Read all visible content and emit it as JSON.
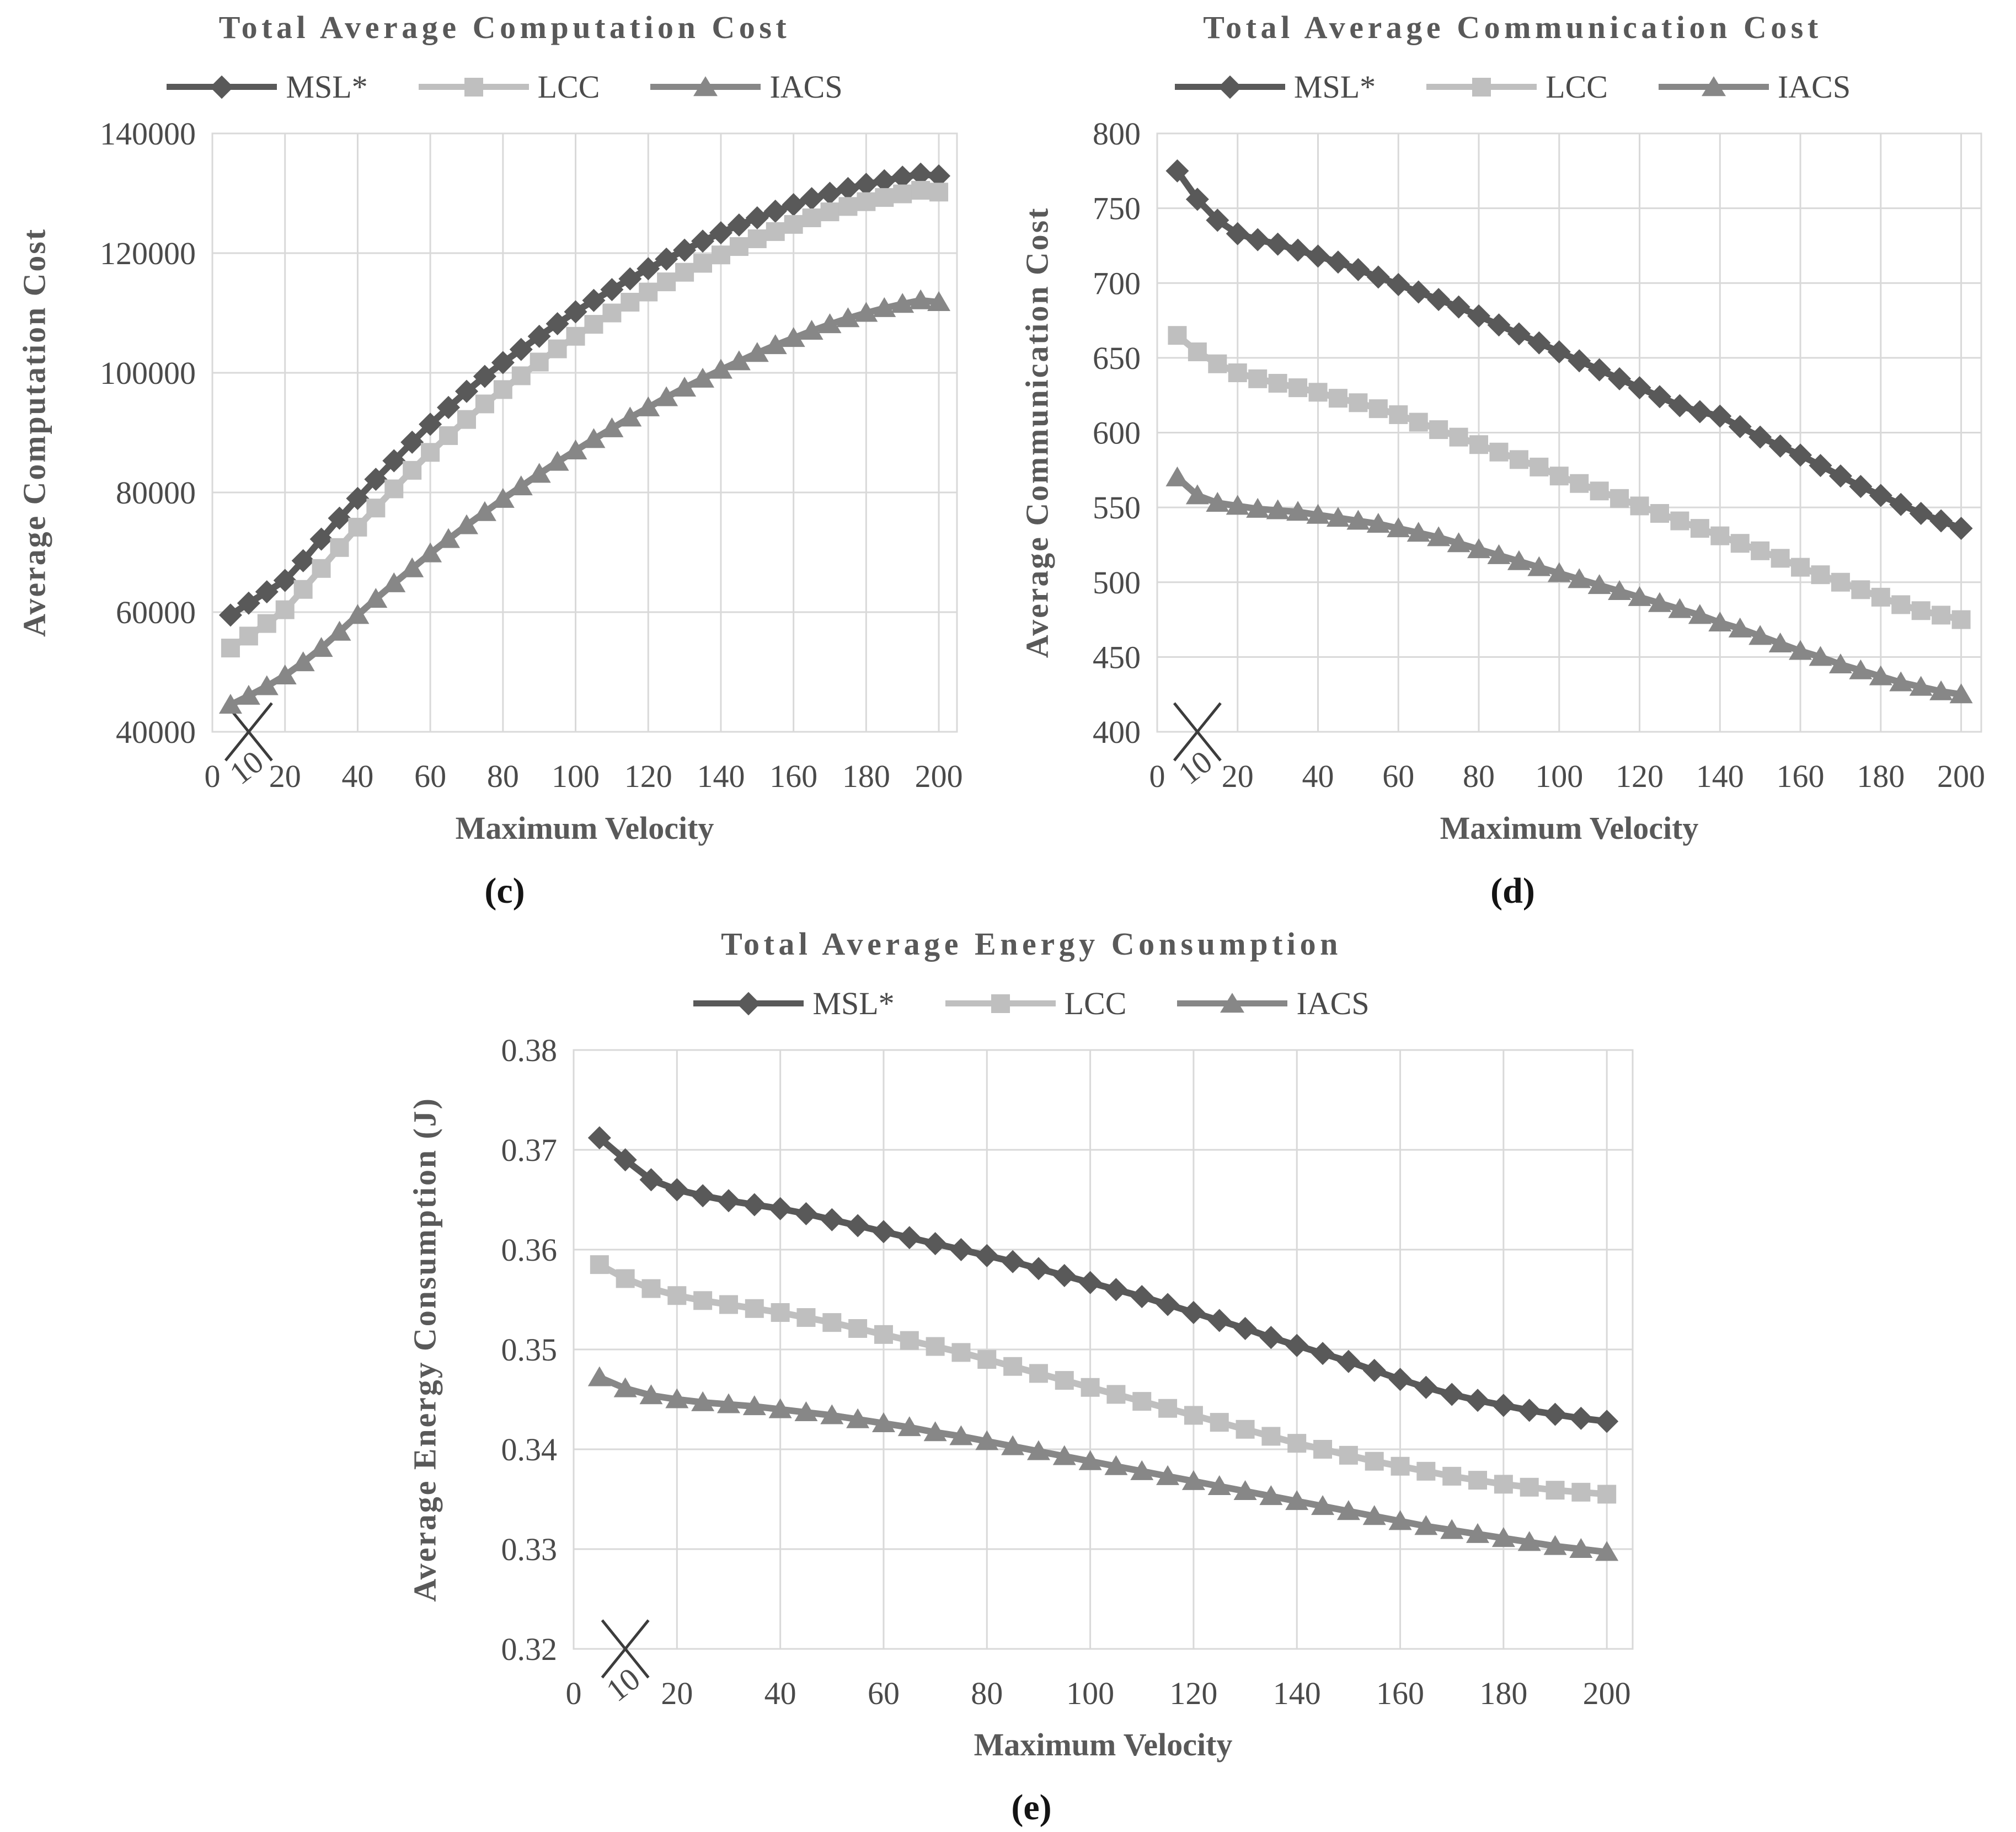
{
  "colors": {
    "background": "#ffffff",
    "grid": "#d9d9d9",
    "tick_text": "#4a4a4a",
    "title_text": "#595959",
    "sublabel_text": "#141414",
    "annotation": "#3c3c3c",
    "series_msl": "#595959",
    "series_lcc": "#bfbfbf",
    "series_iacs": "#878787"
  },
  "chart_data": [
    {
      "id": "c",
      "type": "line",
      "title": "Total Average Computation Cost",
      "sublabel": "(c)",
      "xlabel": "Maximum Velocity",
      "ylabel": "Average Computation Cost",
      "legend_position": "top",
      "grid": true,
      "xlim": [
        0,
        205
      ],
      "ylim": [
        40000,
        140000
      ],
      "xticks": [
        0,
        20,
        40,
        60,
        80,
        100,
        120,
        140,
        160,
        180,
        200
      ],
      "yticks": [
        40000,
        60000,
        80000,
        100000,
        120000,
        140000
      ],
      "annotation": {
        "x": 10,
        "label": "10",
        "marker": "x-cross",
        "color": "#3c3c3c"
      },
      "x": [
        5,
        10,
        15,
        20,
        25,
        30,
        35,
        40,
        45,
        50,
        55,
        60,
        65,
        70,
        75,
        80,
        85,
        90,
        95,
        100,
        105,
        110,
        115,
        120,
        125,
        130,
        135,
        140,
        145,
        150,
        155,
        160,
        165,
        170,
        175,
        180,
        185,
        190,
        195,
        200
      ],
      "series": [
        {
          "name": "MSL*",
          "marker": "diamond",
          "color": "#595959",
          "values": [
            59500,
            61500,
            63400,
            65300,
            68600,
            72200,
            75700,
            79000,
            82200,
            85300,
            88400,
            91400,
            94200,
            96900,
            99400,
            101700,
            103900,
            106100,
            108200,
            110200,
            112100,
            113900,
            115700,
            117400,
            119000,
            120500,
            122000,
            123400,
            124700,
            125900,
            127000,
            128100,
            129100,
            130000,
            130800,
            131500,
            132100,
            132700,
            133200,
            132900
          ]
        },
        {
          "name": "LCC",
          "marker": "square",
          "color": "#bfbfbf",
          "values": [
            54000,
            56000,
            58100,
            60400,
            63800,
            67300,
            70800,
            74200,
            77400,
            80600,
            83700,
            86700,
            89500,
            92200,
            94800,
            97200,
            99500,
            101800,
            104000,
            106100,
            108100,
            110000,
            111800,
            113500,
            115200,
            116800,
            118300,
            119700,
            121100,
            122400,
            123600,
            124800,
            125900,
            126900,
            127800,
            128600,
            129300,
            129900,
            130500,
            130200
          ]
        },
        {
          "name": "IACS",
          "marker": "triangle",
          "color": "#878787",
          "values": [
            44500,
            46000,
            47600,
            49400,
            51600,
            54000,
            56700,
            59500,
            62200,
            64800,
            67300,
            69800,
            72200,
            74500,
            76700,
            78900,
            81000,
            83100,
            85100,
            87000,
            88900,
            90700,
            92500,
            94200,
            95900,
            97500,
            99000,
            100500,
            101900,
            103300,
            104600,
            105800,
            107000,
            108100,
            109100,
            110000,
            110800,
            111500,
            112100,
            111800
          ]
        }
      ]
    },
    {
      "id": "d",
      "type": "line",
      "title": "Total Average Communication Cost",
      "sublabel": "(d)",
      "xlabel": "Maximum Velocity",
      "ylabel": "Average Communication Cost",
      "legend_position": "top",
      "grid": true,
      "xlim": [
        0,
        205
      ],
      "ylim": [
        400,
        800
      ],
      "xticks": [
        0,
        20,
        40,
        60,
        80,
        100,
        120,
        140,
        160,
        180,
        200
      ],
      "yticks": [
        400,
        450,
        500,
        550,
        600,
        650,
        700,
        750,
        800
      ],
      "annotation": {
        "x": 10,
        "label": "10",
        "marker": "x-cross",
        "color": "#3c3c3c"
      },
      "x": [
        5,
        10,
        15,
        20,
        25,
        30,
        35,
        40,
        45,
        50,
        55,
        60,
        65,
        70,
        75,
        80,
        85,
        90,
        95,
        100,
        105,
        110,
        115,
        120,
        125,
        130,
        135,
        140,
        145,
        150,
        155,
        160,
        165,
        170,
        175,
        180,
        185,
        190,
        195,
        200
      ],
      "series": [
        {
          "name": "MSL*",
          "marker": "diamond",
          "color": "#595959",
          "values": [
            775,
            756,
            742,
            733,
            729,
            726,
            722,
            718,
            714,
            709,
            704,
            699,
            694,
            689,
            684,
            678,
            672,
            666,
            660,
            654,
            648,
            642,
            636,
            630,
            624,
            618,
            614,
            611,
            604,
            597,
            591,
            585,
            578,
            571,
            564,
            558,
            552,
            546,
            541,
            536
          ]
        },
        {
          "name": "LCC",
          "marker": "square",
          "color": "#bfbfbf",
          "values": [
            665,
            654,
            646,
            640,
            636,
            633,
            630,
            627,
            623,
            620,
            616,
            612,
            607,
            602,
            597,
            592,
            587,
            582,
            577,
            571,
            566,
            561,
            556,
            551,
            546,
            541,
            536,
            531,
            526,
            521,
            516,
            510,
            505,
            500,
            495,
            490,
            485,
            481,
            478,
            475
          ]
        },
        {
          "name": "IACS",
          "marker": "triangle",
          "color": "#878787",
          "values": [
            570,
            558,
            553,
            551,
            549,
            548,
            547,
            545,
            543,
            541,
            539,
            536,
            533,
            530,
            526,
            522,
            518,
            514,
            510,
            506,
            502,
            498,
            494,
            490,
            486,
            482,
            478,
            473,
            469,
            464,
            459,
            454,
            450,
            445,
            441,
            437,
            433,
            430,
            427,
            425
          ]
        }
      ]
    },
    {
      "id": "e",
      "type": "line",
      "title": "Total Average Energy Consumption",
      "sublabel": "(e)",
      "xlabel": "Maximum Velocity",
      "ylabel": "Average Energy Consumption (J)",
      "legend_position": "top",
      "grid": true,
      "xlim": [
        0,
        205
      ],
      "ylim": [
        0.32,
        0.38
      ],
      "ytick_decimals": 2,
      "xticks": [
        0,
        20,
        40,
        60,
        80,
        100,
        120,
        140,
        160,
        180,
        200
      ],
      "yticks": [
        0.32,
        0.33,
        0.34,
        0.35,
        0.36,
        0.37,
        0.38
      ],
      "annotation": {
        "x": 10,
        "label": "10",
        "marker": "x-cross",
        "color": "#3c3c3c"
      },
      "x": [
        5,
        10,
        15,
        20,
        25,
        30,
        35,
        40,
        45,
        50,
        55,
        60,
        65,
        70,
        75,
        80,
        85,
        90,
        95,
        100,
        105,
        110,
        115,
        120,
        125,
        130,
        135,
        140,
        145,
        150,
        155,
        160,
        165,
        170,
        175,
        180,
        185,
        190,
        195,
        200
      ],
      "series": [
        {
          "name": "MSL*",
          "marker": "diamond",
          "color": "#595959",
          "values": [
            0.3712,
            0.369,
            0.367,
            0.366,
            0.3654,
            0.3649,
            0.3645,
            0.3641,
            0.3636,
            0.363,
            0.3624,
            0.3618,
            0.3612,
            0.3606,
            0.36,
            0.3594,
            0.3588,
            0.3581,
            0.3574,
            0.3567,
            0.356,
            0.3553,
            0.3545,
            0.3537,
            0.3529,
            0.3521,
            0.3512,
            0.3504,
            0.3496,
            0.3488,
            0.3479,
            0.347,
            0.3462,
            0.3455,
            0.3449,
            0.3444,
            0.3439,
            0.3435,
            0.3431,
            0.3428
          ]
        },
        {
          "name": "LCC",
          "marker": "square",
          "color": "#bfbfbf",
          "values": [
            0.3585,
            0.3571,
            0.3561,
            0.3554,
            0.3549,
            0.3545,
            0.3541,
            0.3537,
            0.3532,
            0.3527,
            0.3521,
            0.3515,
            0.3509,
            0.3503,
            0.3497,
            0.349,
            0.3483,
            0.3476,
            0.3469,
            0.3462,
            0.3455,
            0.3448,
            0.3441,
            0.3434,
            0.3427,
            0.342,
            0.3413,
            0.3406,
            0.34,
            0.3394,
            0.3388,
            0.3383,
            0.3378,
            0.3373,
            0.3369,
            0.3365,
            0.3362,
            0.3359,
            0.3357,
            0.3355
          ]
        },
        {
          "name": "IACS",
          "marker": "triangle",
          "color": "#878787",
          "values": [
            0.3472,
            0.3461,
            0.3454,
            0.345,
            0.3447,
            0.3445,
            0.3443,
            0.344,
            0.3437,
            0.3434,
            0.343,
            0.3426,
            0.3422,
            0.3417,
            0.3413,
            0.3408,
            0.3403,
            0.3398,
            0.3393,
            0.3388,
            0.3383,
            0.3378,
            0.3373,
            0.3368,
            0.3363,
            0.3358,
            0.3353,
            0.3348,
            0.3343,
            0.3338,
            0.3333,
            0.3328,
            0.3323,
            0.3319,
            0.3315,
            0.3311,
            0.3307,
            0.3303,
            0.33,
            0.3297
          ]
        }
      ]
    }
  ]
}
